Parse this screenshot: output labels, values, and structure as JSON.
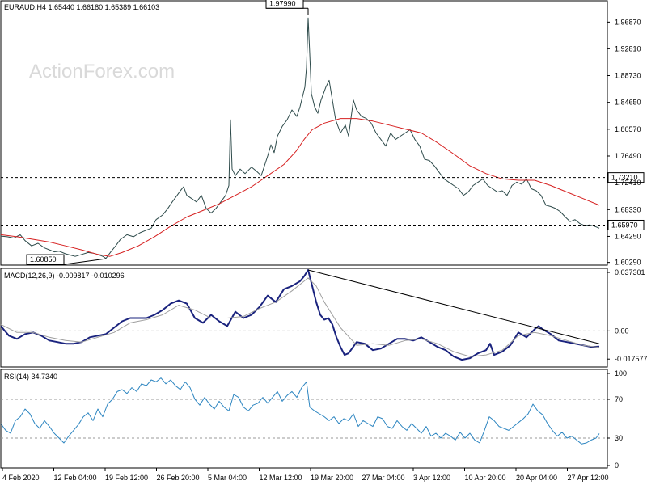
{
  "chart_data": [
    {
      "type": "line",
      "panel": "price",
      "title": "EURAUD,H4  1.65440 1.66180 1.65389 1.66103",
      "watermark": "ActionForex.com",
      "ylim": [
        1.6,
        1.9999
      ],
      "yticks": [
        "1.96870",
        "1.92810",
        "1.88730",
        "1.84650",
        "1.80570",
        "1.76490",
        "1.72410",
        "1.68330",
        "1.64250",
        "1.60290"
      ],
      "grid": false,
      "series": [
        {
          "color": "#2e4b4b",
          "x": [
            0,
            8,
            16,
            24,
            30,
            38,
            46,
            54,
            62,
            66,
            72,
            80,
            86,
            92,
            100,
            108,
            114,
            120,
            126,
            130,
            136,
            142,
            148,
            156,
            164,
            172,
            180,
            186,
            192,
            200,
            206,
            212,
            218,
            222,
            226,
            230,
            236,
            242,
            248,
            254,
            260,
            266,
            272,
            278,
            282,
            284,
            286,
            290,
            296,
            302,
            310,
            316,
            322,
            326,
            330,
            334,
            338,
            342,
            348,
            354,
            360,
            366,
            370,
            374,
            376,
            378,
            380,
            382,
            384,
            388,
            392,
            396,
            402,
            406,
            410,
            414,
            420,
            426,
            430,
            436,
            440,
            446,
            452,
            458,
            464,
            470,
            476,
            482,
            488,
            494,
            500,
            506,
            512,
            518,
            524,
            530,
            536,
            542,
            548,
            554,
            560,
            566,
            572,
            578,
            584,
            590,
            596,
            602,
            608,
            614,
            620,
            626,
            632,
            638,
            644,
            650,
            656,
            662,
            668,
            674,
            680,
            686,
            692,
            698,
            704,
            710,
            716,
            722,
            728,
            734,
            740
          ],
          "values": [
            1.643,
            1.642,
            1.64,
            1.645,
            1.636,
            1.628,
            1.632,
            1.625,
            1.621,
            1.619,
            1.62,
            1.616,
            1.614,
            1.612,
            1.615,
            1.618,
            1.617,
            1.615,
            1.612,
            1.609,
            1.619,
            1.628,
            1.638,
            1.645,
            1.642,
            1.648,
            1.652,
            1.655,
            1.668,
            1.675,
            1.684,
            1.695,
            1.705,
            1.712,
            1.718,
            1.705,
            1.7,
            1.695,
            1.705,
            1.685,
            1.678,
            1.685,
            1.695,
            1.705,
            1.72,
            1.82,
            1.745,
            1.735,
            1.745,
            1.738,
            1.748,
            1.742,
            1.735,
            1.75,
            1.765,
            1.782,
            1.77,
            1.795,
            1.81,
            1.82,
            1.835,
            1.825,
            1.84,
            1.86,
            1.87,
            1.9,
            1.975,
            1.92,
            1.86,
            1.84,
            1.83,
            1.85,
            1.87,
            1.88,
            1.85,
            1.82,
            1.8,
            1.812,
            1.795,
            1.85,
            1.835,
            1.825,
            1.822,
            1.815,
            1.8,
            1.79,
            1.78,
            1.8,
            1.79,
            1.795,
            1.8,
            1.805,
            1.79,
            1.78,
            1.76,
            1.758,
            1.75,
            1.74,
            1.73,
            1.725,
            1.72,
            1.715,
            1.705,
            1.71,
            1.72,
            1.725,
            1.73,
            1.72,
            1.715,
            1.71,
            1.712,
            1.705,
            1.72,
            1.725,
            1.722,
            1.73,
            1.715,
            1.712,
            1.705,
            1.69,
            1.688,
            1.685,
            1.68,
            1.672,
            1.665,
            1.668,
            1.662,
            1.659,
            1.66,
            1.658,
            1.655
          ]
        },
        {
          "color": "#d62020",
          "x": [
            0,
            20,
            40,
            60,
            80,
            100,
            120,
            135,
            150,
            170,
            190,
            210,
            230,
            250,
            270,
            290,
            310,
            330,
            350,
            365,
            375,
            385,
            400,
            420,
            440,
            460,
            480,
            500,
            520,
            540,
            560,
            580,
            600,
            620,
            640,
            660,
            680,
            700,
            720,
            740
          ],
          "values": [
            1.645,
            1.642,
            1.638,
            1.634,
            1.628,
            1.622,
            1.615,
            1.612,
            1.618,
            1.628,
            1.642,
            1.658,
            1.672,
            1.682,
            1.692,
            1.705,
            1.718,
            1.735,
            1.752,
            1.772,
            1.79,
            1.805,
            1.815,
            1.822,
            1.822,
            1.818,
            1.812,
            1.806,
            1.8,
            1.785,
            1.768,
            1.75,
            1.738,
            1.73,
            1.728,
            1.728,
            1.72,
            1.71,
            1.7,
            1.69
          ]
        }
      ],
      "levels": [
        {
          "value": 1.7321,
          "label": "1.73210"
        },
        {
          "value": 1.6597,
          "label": "1.65970"
        }
      ],
      "annotations": [
        {
          "label": "1.97990",
          "x": 380,
          "value": 1.9799
        },
        {
          "label": "1.60850",
          "x": 130,
          "value": 1.6085
        }
      ]
    },
    {
      "type": "line",
      "panel": "macd",
      "title": "MACD(12,26,9) -0.009817 -0.010296",
      "ylim": [
        -0.022,
        0.0385
      ],
      "yticks": [
        "0.037301",
        "0.00",
        "-0.017577"
      ],
      "zero_label": "0.00",
      "series": [
        {
          "color": "#1a237e",
          "x": [
            0,
            10,
            20,
            30,
            40,
            50,
            60,
            70,
            80,
            90,
            100,
            110,
            120,
            130,
            140,
            150,
            160,
            170,
            180,
            190,
            200,
            210,
            220,
            230,
            240,
            250,
            260,
            270,
            280,
            290,
            300,
            310,
            320,
            330,
            340,
            350,
            360,
            370,
            375,
            380,
            385,
            390,
            395,
            400,
            405,
            410,
            415,
            420,
            425,
            430,
            440,
            450,
            460,
            470,
            480,
            490,
            500,
            510,
            520,
            530,
            540,
            550,
            560,
            570,
            580,
            590,
            600,
            605,
            610,
            620,
            630,
            640,
            650,
            660,
            665,
            670,
            680,
            690,
            700,
            710,
            720,
            730,
            740
          ],
          "values": [
            0.003,
            -0.003,
            -0.005,
            -0.002,
            -0.001,
            -0.003,
            -0.006,
            -0.007,
            -0.008,
            -0.008,
            -0.007,
            -0.004,
            -0.003,
            -0.002,
            0.002,
            0.006,
            0.008,
            0.008,
            0.008,
            0.01,
            0.013,
            0.017,
            0.019,
            0.017,
            0.008,
            0.005,
            0.01,
            0.006,
            0.003,
            0.012,
            0.008,
            0.01,
            0.015,
            0.022,
            0.018,
            0.026,
            0.028,
            0.031,
            0.034,
            0.038,
            0.028,
            0.018,
            0.01,
            0.007,
            0.008,
            0.004,
            -0.004,
            -0.01,
            -0.015,
            -0.014,
            -0.007,
            -0.008,
            -0.012,
            -0.011,
            -0.008,
            -0.005,
            -0.005,
            -0.006,
            -0.004,
            -0.007,
            -0.01,
            -0.012,
            -0.016,
            -0.018,
            -0.017,
            -0.014,
            -0.012,
            -0.008,
            -0.015,
            -0.013,
            -0.009,
            -0.001,
            -0.004,
            0.001,
            0.003,
            0.001,
            -0.002,
            -0.006,
            -0.007,
            -0.008,
            -0.009,
            -0.01,
            -0.0098
          ]
        },
        {
          "color": "#a0a0a0",
          "x": [
            0,
            20,
            40,
            60,
            80,
            100,
            120,
            140,
            160,
            180,
            200,
            220,
            240,
            260,
            280,
            300,
            320,
            340,
            360,
            380,
            390,
            400,
            420,
            440,
            460,
            480,
            500,
            520,
            540,
            560,
            580,
            600,
            620,
            640,
            660,
            680,
            700,
            720,
            740
          ],
          "values": [
            0.004,
            -0.001,
            -0.001,
            -0.004,
            -0.006,
            -0.007,
            -0.004,
            -0.001,
            0.005,
            0.007,
            0.01,
            0.016,
            0.013,
            0.008,
            0.008,
            0.009,
            0.014,
            0.018,
            0.025,
            0.033,
            0.028,
            0.018,
            0.002,
            -0.009,
            -0.008,
            -0.009,
            -0.006,
            -0.005,
            -0.008,
            -0.013,
            -0.016,
            -0.015,
            -0.012,
            -0.003,
            -0.001,
            -0.003,
            -0.006,
            -0.009,
            -0.0103
          ]
        }
      ],
      "trendline": {
        "x": [
          380,
          740
        ],
        "values": [
          0.038,
          -0.008
        ]
      }
    },
    {
      "type": "line",
      "panel": "rsi",
      "title": "RSI(14) 34.7340",
      "ylim": [
        0,
        100
      ],
      "yticks": [
        "100",
        "70",
        "30",
        "0"
      ],
      "levels": [
        70,
        30
      ],
      "series": [
        {
          "color": "#2e86c1",
          "x": [
            0,
            6,
            12,
            18,
            24,
            30,
            36,
            42,
            48,
            54,
            60,
            66,
            72,
            78,
            84,
            90,
            96,
            102,
            108,
            114,
            120,
            126,
            132,
            138,
            144,
            150,
            156,
            162,
            168,
            174,
            180,
            186,
            192,
            198,
            204,
            210,
            216,
            222,
            228,
            234,
            240,
            246,
            252,
            258,
            264,
            270,
            276,
            282,
            288,
            294,
            300,
            306,
            312,
            318,
            324,
            330,
            336,
            342,
            348,
            354,
            360,
            366,
            372,
            378,
            382,
            388,
            394,
            400,
            406,
            412,
            418,
            424,
            430,
            436,
            442,
            448,
            454,
            460,
            466,
            472,
            478,
            484,
            490,
            496,
            502,
            508,
            514,
            520,
            526,
            532,
            538,
            544,
            550,
            556,
            562,
            568,
            574,
            580,
            586,
            592,
            598,
            604,
            610,
            616,
            622,
            628,
            634,
            640,
            646,
            652,
            658,
            664,
            670,
            676,
            682,
            688,
            694,
            700,
            706,
            712,
            718,
            724,
            730,
            736,
            740
          ],
          "values": [
            45,
            38,
            35,
            48,
            52,
            60,
            55,
            45,
            40,
            48,
            42,
            35,
            30,
            25,
            32,
            38,
            44,
            52,
            56,
            48,
            60,
            52,
            65,
            70,
            78,
            80,
            76,
            82,
            78,
            86,
            84,
            90,
            88,
            92,
            86,
            90,
            84,
            80,
            88,
            82,
            70,
            64,
            72,
            65,
            60,
            68,
            62,
            58,
            75,
            72,
            62,
            58,
            64,
            66,
            72,
            66,
            72,
            78,
            68,
            74,
            78,
            72,
            82,
            88,
            62,
            58,
            55,
            52,
            48,
            52,
            45,
            50,
            48,
            55,
            42,
            48,
            45,
            42,
            52,
            50,
            42,
            40,
            48,
            42,
            38,
            45,
            40,
            35,
            42,
            32,
            35,
            30,
            35,
            32,
            28,
            36,
            30,
            35,
            28,
            25,
            38,
            52,
            48,
            42,
            40,
            38,
            42,
            46,
            50,
            55,
            65,
            58,
            54,
            45,
            38,
            32,
            36,
            30,
            32,
            28,
            24,
            25,
            28,
            30,
            34.7
          ]
        }
      ]
    }
  ],
  "x_axis": {
    "labels": [
      "4 Feb 2020",
      "12 Feb 04:00",
      "19 Feb 12:00",
      "26 Feb 20:00",
      "5 Mar 04:00",
      "12 Mar 12:00",
      "19 Mar 20:00",
      "27 Mar 04:00",
      "3 Apr 12:00",
      "10 Apr 20:00",
      "20 Apr 04:00",
      "27 Apr 12:00"
    ]
  }
}
